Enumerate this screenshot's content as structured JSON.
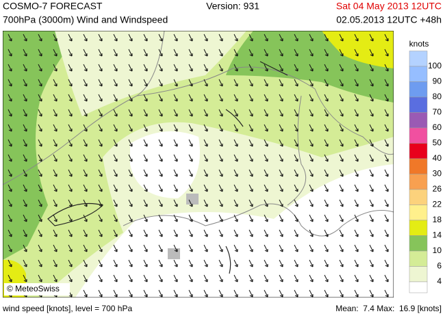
{
  "header": {
    "title": "COSMO-7 FORECAST",
    "subtitle": "700hPa (3000m) Wind and Windspeed",
    "version": "Version: 931",
    "valid_time": "Sat 04 May 2013 12UTC",
    "run": "02.05.2013 12UTC +48h"
  },
  "legend": {
    "title": "knots",
    "items": [
      {
        "label": 100,
        "color": "#b4d2ff"
      },
      {
        "label": 90,
        "color": "#96beff"
      },
      {
        "label": 80,
        "color": "#6e9cf0"
      },
      {
        "label": 70,
        "color": "#5a6ee0"
      },
      {
        "label": 60,
        "color": "#9a5ab4"
      },
      {
        "label": 50,
        "color": "#f050a0"
      },
      {
        "label": 40,
        "color": "#e8001c"
      },
      {
        "label": 30,
        "color": "#f07828"
      },
      {
        "label": 26,
        "color": "#f8a050"
      },
      {
        "label": 22,
        "color": "#fcd27c"
      },
      {
        "label": 18,
        "color": "#fff08c"
      },
      {
        "label": 14,
        "color": "#e4ec14"
      },
      {
        "label": 10,
        "color": "#86c45a"
      },
      {
        "label": 6,
        "color": "#d4ec96"
      },
      {
        "label": 4,
        "color": "#eef6d2"
      }
    ]
  },
  "map": {
    "credit": "© MeteoSwiss"
  },
  "footer": {
    "left": "wind speed [knots], level = 700 hPa",
    "right": "Mean:  7.4 Max:  16.9 [knots]"
  }
}
